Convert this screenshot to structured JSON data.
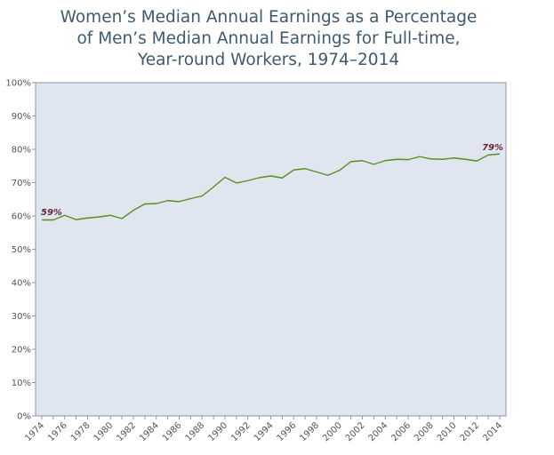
{
  "chart_data": {
    "type": "line",
    "title_lines": [
      "Women’s Median Annual Earnings as a Percentage",
      "of Men’s Median Annual Earnings for Full-time,",
      "Year-round Workers, 1974–2014"
    ],
    "xlabel": "",
    "ylabel": "",
    "xlim": [
      1974,
      2014
    ],
    "ylim": [
      0,
      100
    ],
    "x_ticks": [
      "1974",
      "1976",
      "1978",
      "1980",
      "1982",
      "1984",
      "1986",
      "1988",
      "1990",
      "1992",
      "1994",
      "1996",
      "1998",
      "2000",
      "2002",
      "2004",
      "2006",
      "2008",
      "2010",
      "2012",
      "2014"
    ],
    "y_ticks": [
      "0%",
      "10%",
      "20%",
      "30%",
      "40%",
      "50%",
      "60%",
      "70%",
      "80%",
      "90%",
      "100%"
    ],
    "grid": false,
    "series": [
      {
        "x": [
          1974,
          1975,
          1976,
          1977,
          1978,
          1979,
          1980,
          1981,
          1982,
          1983,
          1984,
          1985,
          1986,
          1987,
          1988,
          1989,
          1990,
          1991,
          1992,
          1993,
          1994,
          1995,
          1996,
          1997,
          1998,
          1999,
          2000,
          2001,
          2002,
          2003,
          2004,
          2005,
          2006,
          2007,
          2008,
          2009,
          2010,
          2011,
          2012,
          2013,
          2014
        ],
        "values": [
          58.8,
          58.8,
          60.2,
          58.9,
          59.4,
          59.7,
          60.2,
          59.2,
          61.7,
          63.6,
          63.7,
          64.6,
          64.3,
          65.2,
          66.0,
          68.7,
          71.6,
          69.9,
          70.6,
          71.5,
          72.0,
          71.4,
          73.8,
          74.2,
          73.2,
          72.2,
          73.7,
          76.3,
          76.6,
          75.5,
          76.6,
          77.0,
          76.9,
          77.8,
          77.1,
          77.0,
          77.4,
          77.0,
          76.5,
          78.3,
          78.6
        ],
        "color": "#5a8f1e"
      }
    ],
    "annotations": [
      {
        "x": 1974,
        "y": 59,
        "text": "59%"
      },
      {
        "x": 2014,
        "y": 79,
        "text": "79%"
      }
    ],
    "plot_background": "#dfe6ef",
    "axis_color": "#8f9aa5",
    "title_color": "#3f5a70",
    "label_color": "#6b1f3a"
  }
}
